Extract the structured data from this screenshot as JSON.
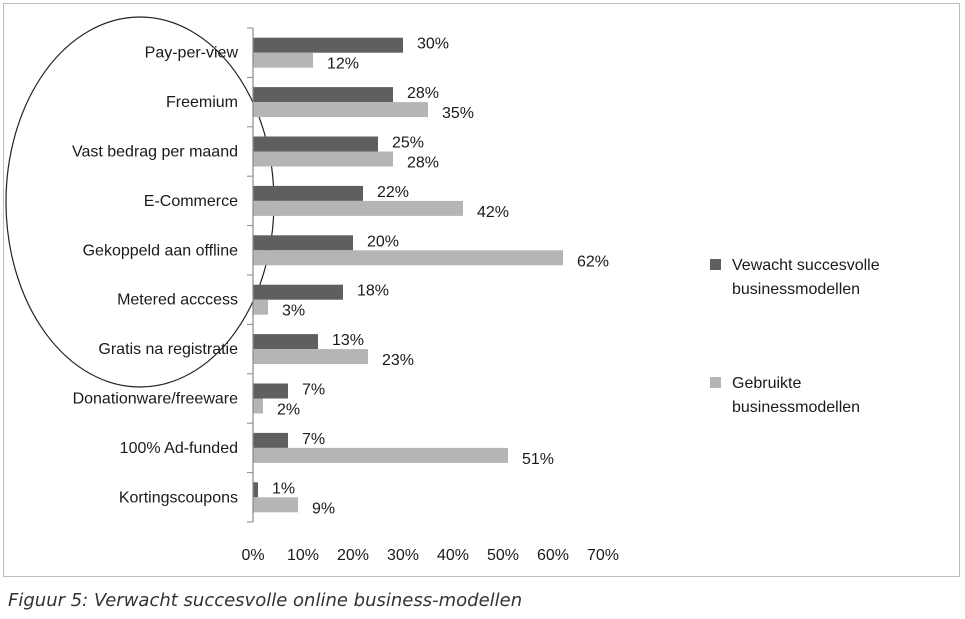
{
  "caption": "Figuur 5: Verwacht succesvolle online business-modellen",
  "chart_data": {
    "type": "bar",
    "orientation": "horizontal",
    "categories": [
      "Pay-per-view",
      "Freemium",
      "Vast bedrag per maand",
      "E-Commerce",
      "Gekoppeld aan offline",
      "Metered acccess",
      "Gratis na registratie",
      "Donationware/freeware",
      "100% Ad-funded",
      "Kortingscoupons"
    ],
    "series": [
      {
        "name": "Vewacht succesvolle businessmodellen",
        "legend_lines": [
          "Vewacht succesvolle",
          "businessmodellen"
        ],
        "color": "#5f5f5f",
        "values": [
          30,
          28,
          25,
          22,
          20,
          18,
          13,
          7,
          7,
          1
        ]
      },
      {
        "name": "Gebruikte businessmodellen",
        "legend_lines": [
          "Gebruikte",
          "businessmodellen"
        ],
        "color": "#b5b5b5",
        "values": [
          12,
          35,
          28,
          42,
          62,
          3,
          23,
          2,
          51,
          9
        ]
      }
    ],
    "value_suffix": "%",
    "xlim": [
      0,
      70
    ],
    "x_ticks": [
      0,
      10,
      20,
      30,
      40,
      50,
      60,
      70
    ],
    "x_tick_labels": [
      "0%",
      "10%",
      "20%",
      "30%",
      "40%",
      "50%",
      "60%",
      "70%"
    ],
    "grid": false,
    "legend_position": "right",
    "annotation": "ellipse around the first five categories"
  }
}
